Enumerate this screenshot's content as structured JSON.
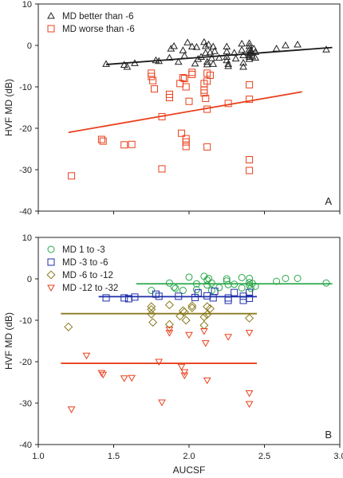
{
  "chart_data": [
    {
      "type": "scatter",
      "panel_label": "A",
      "xlabel": "",
      "ylabel": "HVF MD (dB)",
      "xlim": [
        1.0,
        3.0
      ],
      "ylim": [
        -40,
        10
      ],
      "xticks": [],
      "yticks": [
        "10",
        "0",
        "-10",
        "-20",
        "-30",
        "-40"
      ],
      "legend_position": "top-left",
      "series": [
        {
          "name": "MD better than -6",
          "marker": "triangle",
          "color": "#222222",
          "points": [
            [
              1.45,
              -4.5
            ],
            [
              1.57,
              -4.7
            ],
            [
              1.59,
              -5.2
            ],
            [
              1.64,
              -4.3
            ],
            [
              1.78,
              -3.6
            ],
            [
              1.8,
              -3.8
            ],
            [
              1.87,
              -3.0
            ],
            [
              1.88,
              -0.8
            ],
            [
              1.9,
              -0.2
            ],
            [
              1.93,
              -4.0
            ],
            [
              1.96,
              -1.2
            ],
            [
              1.97,
              -2.5
            ],
            [
              1.99,
              0.7
            ],
            [
              2.02,
              -0.3
            ],
            [
              2.04,
              -4.4
            ],
            [
              2.05,
              -0.4
            ],
            [
              2.06,
              -3.3
            ],
            [
              2.08,
              -2.8
            ],
            [
              2.1,
              0.8
            ],
            [
              2.11,
              -0.2
            ],
            [
              2.11,
              -1.8
            ],
            [
              2.12,
              -4.0
            ],
            [
              2.12,
              -4.6
            ],
            [
              2.13,
              0.2
            ],
            [
              2.14,
              -1.7
            ],
            [
              2.15,
              -3.1
            ],
            [
              2.16,
              -0.3
            ],
            [
              2.16,
              -4.5
            ],
            [
              2.17,
              -1.4
            ],
            [
              2.2,
              -3.0
            ],
            [
              2.25,
              -0.3
            ],
            [
              2.25,
              -1.5
            ],
            [
              2.25,
              -2.8
            ],
            [
              2.25,
              -3.6
            ],
            [
              2.26,
              -4.5
            ],
            [
              2.26,
              -5.0
            ],
            [
              2.3,
              -1.8
            ],
            [
              2.31,
              -3.2
            ],
            [
              2.35,
              0.4
            ],
            [
              2.35,
              -1.1
            ],
            [
              2.36,
              -2.4
            ],
            [
              2.36,
              -4.2
            ],
            [
              2.36,
              -5.2
            ],
            [
              2.4,
              0.5
            ],
            [
              2.4,
              -0.2
            ],
            [
              2.4,
              -1.0
            ],
            [
              2.4,
              -1.8
            ],
            [
              2.4,
              -2.3
            ],
            [
              2.4,
              -2.8
            ],
            [
              2.4,
              -3.3
            ],
            [
              2.41,
              -1.2
            ],
            [
              2.41,
              -1.8
            ],
            [
              2.42,
              -2.7
            ],
            [
              2.43,
              -0.8
            ],
            [
              2.44,
              -3.0
            ],
            [
              2.44,
              -1.6
            ],
            [
              2.58,
              -0.8
            ],
            [
              2.64,
              0.0
            ],
            [
              2.72,
              0.2
            ],
            [
              2.91,
              -1.0
            ]
          ]
        },
        {
          "name": "MD worse than -6",
          "marker": "square",
          "color": "#e8401c",
          "points": [
            [
              1.22,
              -31.5
            ],
            [
              1.42,
              -22.7
            ],
            [
              1.43,
              -23.1
            ],
            [
              1.57,
              -24.0
            ],
            [
              1.62,
              -23.9
            ],
            [
              1.75,
              -6.7
            ],
            [
              1.75,
              -7.5
            ],
            [
              1.76,
              -8.5
            ],
            [
              1.77,
              -10.5
            ],
            [
              1.82,
              -17.2
            ],
            [
              1.82,
              -29.8
            ],
            [
              1.87,
              -11.8
            ],
            [
              1.87,
              -12.6
            ],
            [
              1.94,
              -9.2
            ],
            [
              1.95,
              -21.2
            ],
            [
              1.96,
              -7.8
            ],
            [
              1.97,
              -8.0
            ],
            [
              1.98,
              -10.0
            ],
            [
              1.98,
              -22.5
            ],
            [
              1.98,
              -23.3
            ],
            [
              1.98,
              -24.4
            ],
            [
              2.0,
              -13.5
            ],
            [
              2.02,
              -6.5
            ],
            [
              2.02,
              -7.0
            ],
            [
              2.1,
              -9.2
            ],
            [
              2.1,
              -10.8
            ],
            [
              2.1,
              -11.5
            ],
            [
              2.11,
              -12.8
            ],
            [
              2.12,
              -6.7
            ],
            [
              2.12,
              -8.6
            ],
            [
              2.12,
              -15.4
            ],
            [
              2.12,
              -24.5
            ],
            [
              2.14,
              -7.2
            ],
            [
              2.26,
              -14.0
            ],
            [
              2.4,
              -9.5
            ],
            [
              2.4,
              -13.0
            ],
            [
              2.4,
              -27.6
            ],
            [
              2.4,
              -30.2
            ]
          ]
        }
      ],
      "fits": [
        {
          "series": "MD better than -6",
          "color": "#1a1a1a",
          "x": [
            1.45,
            2.95
          ],
          "y": [
            -4.6,
            -0.5
          ]
        },
        {
          "series": "MD worse than -6",
          "color": "#e8401c",
          "x": [
            1.2,
            2.75
          ],
          "y": [
            -21.0,
            -11.2
          ]
        }
      ]
    },
    {
      "type": "scatter",
      "panel_label": "B",
      "xlabel": "AUCSF",
      "ylabel": "HVF MD (dB)",
      "xlim": [
        1.0,
        3.0
      ],
      "ylim": [
        -40,
        10
      ],
      "xticks": [
        "1.0",
        "1.5",
        "2.0",
        "2.5",
        "3.0"
      ],
      "yticks": [
        "10",
        "0",
        "-10",
        "-20",
        "-30",
        "-40"
      ],
      "legend_position": "top-left",
      "series": [
        {
          "name": "MD 1 to -3",
          "marker": "circle",
          "color": "#2aa84a",
          "points": [
            [
              1.75,
              -2.8
            ],
            [
              1.87,
              -1.0
            ],
            [
              1.9,
              -2.0
            ],
            [
              1.91,
              -2.3
            ],
            [
              1.96,
              -2.8
            ],
            [
              2.0,
              0.4
            ],
            [
              2.05,
              -1.2
            ],
            [
              2.05,
              -2.6
            ],
            [
              2.1,
              0.6
            ],
            [
              2.12,
              -0.3
            ],
            [
              2.12,
              -1.5
            ],
            [
              2.13,
              0.1
            ],
            [
              2.15,
              -2.8
            ],
            [
              2.15,
              -1.0
            ],
            [
              2.2,
              -2.1
            ],
            [
              2.25,
              0.0
            ],
            [
              2.25,
              -0.5
            ],
            [
              2.26,
              -1.4
            ],
            [
              2.3,
              -1.3
            ],
            [
              2.35,
              0.3
            ],
            [
              2.35,
              -2.2
            ],
            [
              2.4,
              0.1
            ],
            [
              2.4,
              -0.9
            ],
            [
              2.4,
              -1.5
            ],
            [
              2.41,
              -2.3
            ],
            [
              2.42,
              -1.1
            ],
            [
              2.44,
              -1.8
            ],
            [
              2.58,
              -0.6
            ],
            [
              2.64,
              0.1
            ],
            [
              2.72,
              0.1
            ],
            [
              2.91,
              -1.0
            ]
          ]
        },
        {
          "name": "MD -3 to -6",
          "marker": "square",
          "color": "#1f2fa8",
          "points": [
            [
              1.45,
              -4.6
            ],
            [
              1.57,
              -4.6
            ],
            [
              1.6,
              -4.8
            ],
            [
              1.64,
              -4.4
            ],
            [
              1.78,
              -3.7
            ],
            [
              1.8,
              -4.2
            ],
            [
              1.93,
              -4.2
            ],
            [
              2.04,
              -4.5
            ],
            [
              2.06,
              -3.4
            ],
            [
              2.12,
              -4.1
            ],
            [
              2.16,
              -4.6
            ],
            [
              2.17,
              -3.0
            ],
            [
              2.26,
              -4.6
            ],
            [
              2.26,
              -5.2
            ],
            [
              2.3,
              -3.3
            ],
            [
              2.36,
              -4.2
            ],
            [
              2.36,
              -5.2
            ],
            [
              2.4,
              -3.3
            ],
            [
              2.4,
              -4.7
            ]
          ]
        },
        {
          "name": "MD -6 to -12",
          "marker": "diamond",
          "color": "#8a7a1e",
          "points": [
            [
              1.2,
              -11.6
            ],
            [
              1.75,
              -6.7
            ],
            [
              1.75,
              -7.4
            ],
            [
              1.75,
              -8.5
            ],
            [
              1.76,
              -10.5
            ],
            [
              1.87,
              -6.3
            ],
            [
              1.87,
              -11.0
            ],
            [
              1.94,
              -9.0
            ],
            [
              1.96,
              -7.7
            ],
            [
              1.97,
              -8.0
            ],
            [
              1.98,
              -10.0
            ],
            [
              2.02,
              -6.5
            ],
            [
              2.02,
              -7.0
            ],
            [
              2.1,
              -9.2
            ],
            [
              2.1,
              -11.2
            ],
            [
              2.12,
              -6.7
            ],
            [
              2.12,
              -8.6
            ],
            [
              2.14,
              -7.2
            ],
            [
              2.4,
              -9.5
            ]
          ]
        },
        {
          "name": "MD -12 to -32",
          "marker": "triangle-down",
          "color": "#e8401c",
          "points": [
            [
              1.22,
              -31.5
            ],
            [
              1.32,
              -18.5
            ],
            [
              1.42,
              -22.7
            ],
            [
              1.43,
              -23.1
            ],
            [
              1.57,
              -24.0
            ],
            [
              1.62,
              -23.9
            ],
            [
              1.8,
              -20.0
            ],
            [
              1.82,
              -29.8
            ],
            [
              1.87,
              -12.2
            ],
            [
              1.87,
              -13.0
            ],
            [
              1.95,
              -21.2
            ],
            [
              1.97,
              -22.5
            ],
            [
              1.97,
              -23.3
            ],
            [
              2.0,
              -13.5
            ],
            [
              2.1,
              -12.6
            ],
            [
              2.11,
              -15.5
            ],
            [
              2.12,
              -24.5
            ],
            [
              2.26,
              -14.0
            ],
            [
              2.4,
              -13.0
            ],
            [
              2.4,
              -27.6
            ],
            [
              2.4,
              -30.2
            ]
          ]
        }
      ],
      "fits": [
        {
          "series": "MD 1 to -3",
          "color": "#2aa84a",
          "x": [
            1.65,
            2.95
          ],
          "y": [
            -1.2,
            -1.2
          ]
        },
        {
          "series": "MD -3 to -6",
          "color": "#1f2fa8",
          "x": [
            1.4,
            2.45
          ],
          "y": [
            -4.3,
            -4.3
          ]
        },
        {
          "series": "MD -6 to -12",
          "color": "#8a7a1e",
          "x": [
            1.15,
            2.45
          ],
          "y": [
            -8.4,
            -8.4
          ]
        },
        {
          "series": "MD -12 to -32",
          "color": "#e8401c",
          "x": [
            1.15,
            2.45
          ],
          "y": [
            -20.4,
            -20.4
          ]
        }
      ]
    }
  ]
}
